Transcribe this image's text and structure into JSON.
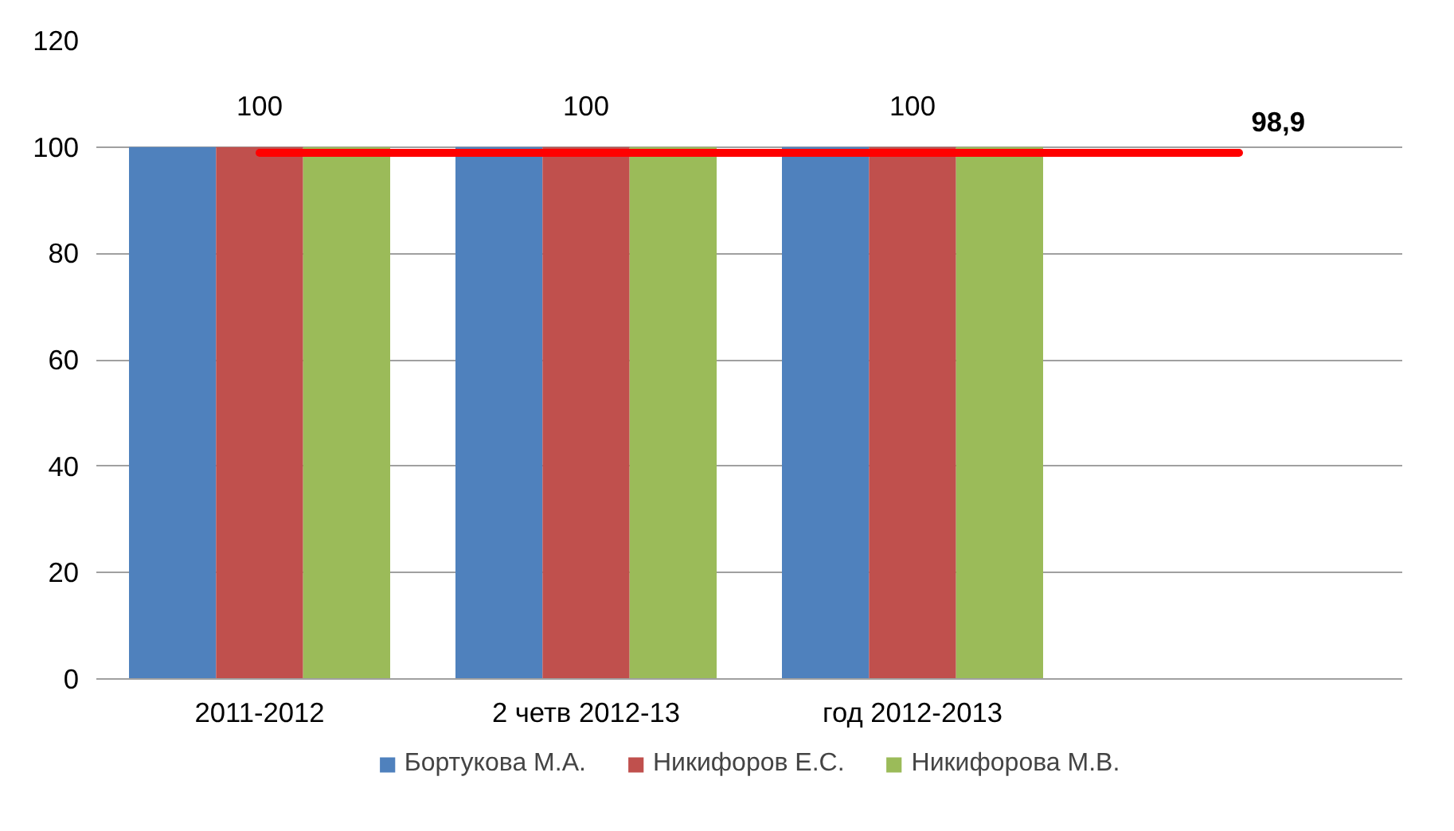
{
  "chart_data": {
    "type": "bar",
    "categories": [
      "2011-2012",
      "2 четв 2012-13",
      "год 2012-2013",
      null
    ],
    "series": [
      {
        "name": "Бортукова М.А.",
        "color": "#4f81bd",
        "values": [
          100,
          100,
          100,
          null
        ]
      },
      {
        "name": "Никифоров Е.С.",
        "color": "#c0504d",
        "values": [
          100,
          100,
          100,
          null
        ],
        "value_labels": [
          "100",
          "100",
          "100",
          null
        ]
      },
      {
        "name": "Никифорова М.В.",
        "color": "#9bbb59",
        "values": [
          100,
          100,
          100,
          null
        ]
      },
      {
        "type": "line",
        "color": "#ff0000",
        "values": [
          98.9,
          98.9,
          98.9,
          98.9
        ],
        "value_labels": [
          null,
          null,
          null,
          "98,9"
        ]
      }
    ],
    "ylim": [
      0,
      120
    ],
    "yticks": [
      0,
      20,
      40,
      60,
      80,
      100,
      120
    ],
    "grid": "y",
    "legend": "bottom"
  }
}
